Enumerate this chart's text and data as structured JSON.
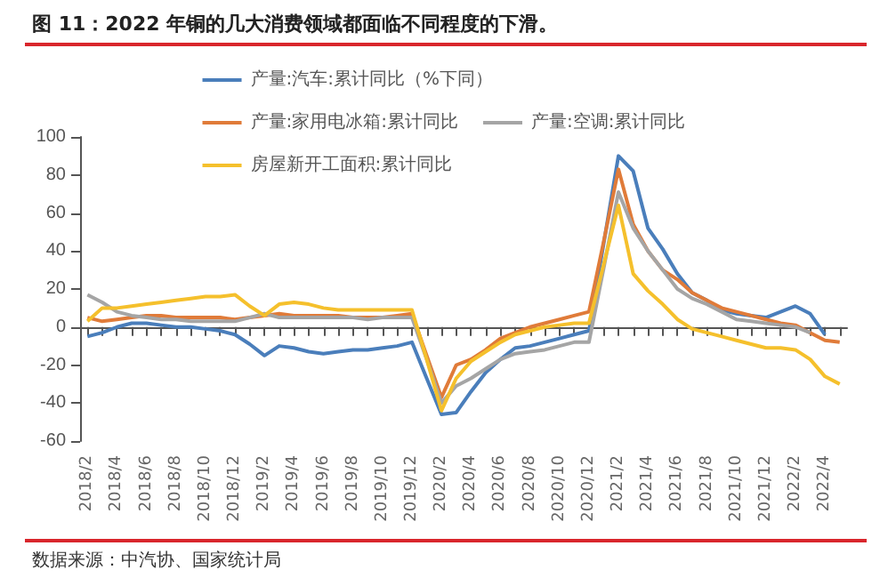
{
  "chart_data": {
    "type": "line",
    "title": "图 11：2022 年铜的几大消费领域都面临不同程度的下滑。",
    "annotations": [
      "数据来源：中汽协、国家统计局"
    ],
    "categories": [
      "2018/2",
      null,
      "2018/4",
      null,
      "2018/6",
      null,
      "2018/8",
      null,
      "2018/10",
      null,
      "2018/12",
      null,
      "2019/2",
      null,
      "2019/4",
      null,
      "2019/6",
      null,
      "2019/8",
      null,
      "2019/10",
      null,
      "2019/12",
      null,
      "2020/2",
      null,
      "2020/4",
      null,
      "2020/6",
      null,
      "2020/8",
      null,
      "2020/10",
      null,
      "2020/12",
      null,
      "2021/2",
      null,
      "2021/4",
      null,
      "2021/6",
      null,
      "2021/8",
      null,
      "2021/10",
      null,
      "2021/12",
      null,
      "2022/2",
      null,
      "2022/4",
      null
    ],
    "series": [
      {
        "name": "产量:汽车:累计同比（%下同）",
        "color": "#4a7ebb",
        "values": [
          -5,
          -3,
          0,
          2,
          2,
          1,
          0,
          0,
          -1,
          -2,
          -4,
          -9,
          -15,
          -10,
          -11,
          -13,
          -14,
          -13,
          -12,
          -12,
          -11,
          -10,
          -8,
          -27,
          -46,
          -45,
          -34,
          -24,
          -17,
          -11,
          -10,
          -8,
          -6,
          -4,
          -2,
          44,
          90,
          82,
          52,
          41,
          28,
          18,
          14,
          9,
          7,
          6,
          5,
          8,
          11,
          7,
          -4,
          null
        ]
      },
      {
        "name": "产量:家用电冰箱:累计同比",
        "color": "#e07b39",
        "values": [
          5,
          3,
          4,
          5,
          6,
          6,
          5,
          5,
          5,
          5,
          4,
          5,
          6,
          7,
          6,
          6,
          6,
          6,
          5,
          5,
          5,
          6,
          7,
          -15,
          -37,
          -20,
          -17,
          -12,
          -6,
          -3,
          0,
          2,
          4,
          6,
          8,
          45,
          83,
          54,
          40,
          30,
          25,
          18,
          14,
          10,
          8,
          6,
          4,
          2,
          1,
          -3,
          -7,
          -8
        ]
      },
      {
        "name": "产量:空调:累计同比",
        "color": "#a5a5a5",
        "values": [
          17,
          13,
          8,
          6,
          5,
          4,
          4,
          3,
          3,
          3,
          3,
          5,
          7,
          5,
          5,
          5,
          5,
          5,
          5,
          4,
          5,
          5,
          5,
          -17,
          -40,
          -31,
          -27,
          -22,
          -17,
          -14,
          -13,
          -12,
          -10,
          -8,
          -8,
          31,
          71,
          52,
          40,
          30,
          20,
          15,
          12,
          8,
          4,
          3,
          2,
          1,
          0,
          -3,
          null,
          null
        ]
      },
      {
        "name": "房屋新开工面积:累计同比",
        "color": "#f5c02c",
        "values": [
          3,
          10,
          10,
          11,
          12,
          13,
          14,
          15,
          16,
          16,
          17,
          11,
          6,
          12,
          13,
          12,
          10,
          9,
          9,
          9,
          9,
          9,
          9,
          -17,
          -44,
          -27,
          -18,
          -13,
          -8,
          -4,
          -2,
          0,
          1,
          2,
          2,
          33,
          64,
          28,
          19,
          12,
          4,
          -1,
          -3,
          -5,
          -7,
          -9,
          -11,
          -11,
          -12,
          -17,
          -26,
          -30
        ]
      }
    ],
    "ylim": [
      -60,
      100
    ],
    "yticks": [
      -60,
      -40,
      -20,
      0,
      20,
      40,
      60,
      80,
      100
    ],
    "legend": "top",
    "marker": "none",
    "line_style": "solid"
  }
}
